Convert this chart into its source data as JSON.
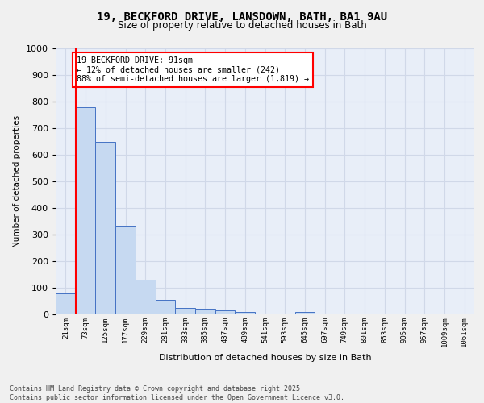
{
  "title_line1": "19, BECKFORD DRIVE, LANSDOWN, BATH, BA1 9AU",
  "title_line2": "Size of property relative to detached houses in Bath",
  "xlabel": "Distribution of detached houses by size in Bath",
  "ylabel": "Number of detached properties",
  "bin_labels": [
    "21sqm",
    "73sqm",
    "125sqm",
    "177sqm",
    "229sqm",
    "281sqm",
    "333sqm",
    "385sqm",
    "437sqm",
    "489sqm",
    "541sqm",
    "593sqm",
    "645sqm",
    "697sqm",
    "749sqm",
    "801sqm",
    "853sqm",
    "905sqm",
    "957sqm",
    "1009sqm",
    "1061sqm"
  ],
  "bar_values": [
    80,
    780,
    650,
    330,
    130,
    55,
    25,
    20,
    15,
    8,
    0,
    0,
    8,
    0,
    0,
    0,
    0,
    0,
    0,
    0,
    0
  ],
  "bar_color": "#c6d9f1",
  "bar_edge_color": "#4472c4",
  "annotation_line1": "19 BECKFORD DRIVE: 91sqm",
  "annotation_line2": "← 12% of detached houses are smaller (242)",
  "annotation_line3": "88% of semi-detached houses are larger (1,819) →",
  "annotation_box_color": "#ffffff",
  "annotation_box_edge_color": "#ff0000",
  "red_line_x": 0.5,
  "ylim": [
    0,
    1000
  ],
  "yticks": [
    0,
    100,
    200,
    300,
    400,
    500,
    600,
    700,
    800,
    900,
    1000
  ],
  "grid_color": "#d0d8e8",
  "background_color": "#e8eef8",
  "fig_background": "#f0f0f0",
  "footnote_line1": "Contains HM Land Registry data © Crown copyright and database right 2025.",
  "footnote_line2": "Contains public sector information licensed under the Open Government Licence v3.0."
}
